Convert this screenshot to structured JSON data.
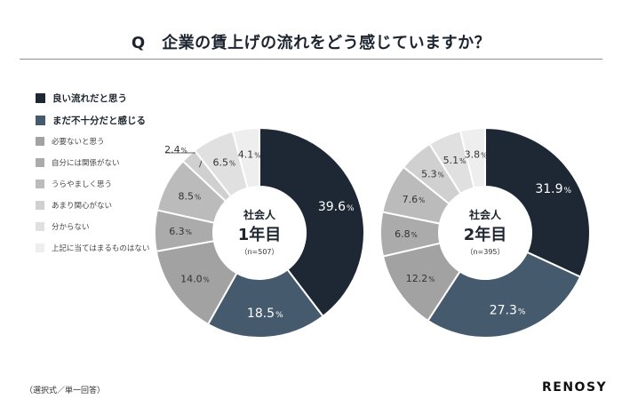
{
  "title": "Q　企業の賃上げの流れをどう感じていますか？",
  "footnote": "（選択式／単一回答）",
  "brand": "RENOSY",
  "legend": [
    {
      "label": "良い流れだと思う",
      "color": "#1e2834",
      "major": true
    },
    {
      "label": "まだ不十分だと感じる",
      "color": "#465a6e",
      "major": true
    },
    {
      "label": "必要ないと思う",
      "color": "#a2a2a2",
      "major": false
    },
    {
      "label": "自分には関係がない",
      "color": "#ababab",
      "major": false
    },
    {
      "label": "うらやましく思う",
      "color": "#bbbbbb",
      "major": false
    },
    {
      "label": "あまり関心がない",
      "color": "#d0d0d0",
      "major": false
    },
    {
      "label": "分からない",
      "color": "#e0e0e0",
      "major": false
    },
    {
      "label": "上記に当てはまるものはない",
      "color": "#eeeeee",
      "major": false
    }
  ],
  "chart_data": [
    {
      "type": "pie",
      "center_title": "社会人",
      "center_year": "1年目",
      "center_n": "（n=507）",
      "unit": "%",
      "categories": [
        "良い流れだと思う",
        "まだ不十分だと感じる",
        "必要ないと思う",
        "自分には関係がない",
        "うらやましく思う",
        "あまり関心がない",
        "分からない",
        "上記に当てはまるものはない"
      ],
      "values": [
        39.6,
        18.5,
        14.0,
        6.3,
        8.5,
        2.4,
        6.5,
        4.1
      ],
      "labels": [
        "39.6",
        "18.5",
        "14.0",
        "6.3",
        "8.5",
        "2.4",
        "6.5",
        "4.1"
      ]
    },
    {
      "type": "pie",
      "center_title": "社会人",
      "center_year": "2年目",
      "center_n": "（n=395）",
      "unit": "%",
      "categories": [
        "良い流れだと思う",
        "まだ不十分だと感じる",
        "必要ないと思う",
        "自分には関係がない",
        "うらやましく思う",
        "あまり関心がない",
        "分からない",
        "上記に当てはまるものはない"
      ],
      "values": [
        31.9,
        27.3,
        12.2,
        6.8,
        7.6,
        5.3,
        5.1,
        3.8
      ],
      "labels": [
        "31.9",
        "27.3",
        "12.2",
        "6.8",
        "7.6",
        "5.3",
        "5.1",
        "3.8"
      ]
    }
  ]
}
